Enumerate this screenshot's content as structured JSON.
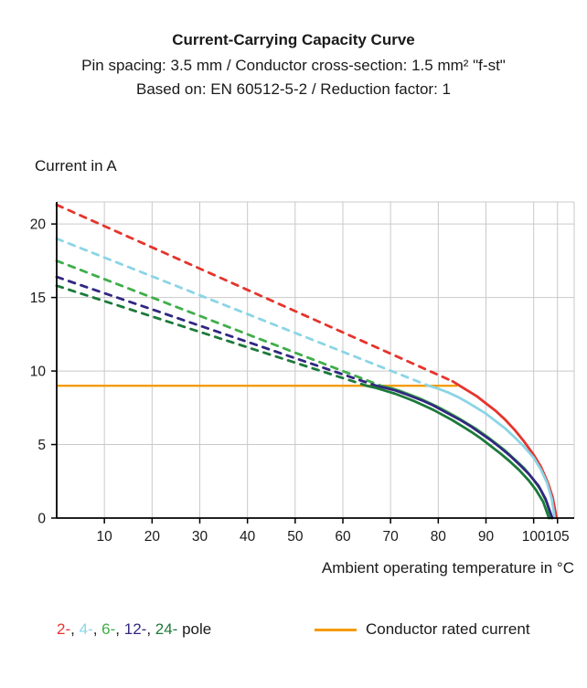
{
  "header": {
    "title": "Current-Carrying Capacity Curve",
    "subtitle1": "Pin spacing: 3.5 mm / Conductor cross-section: 1.5 mm² \"f-st\"",
    "subtitle2": "Based on: EN 60512-5-2 / Reduction factor: 1"
  },
  "chart_data": {
    "type": "line",
    "title": "Current-Carrying Capacity Curve",
    "xlabel": "Ambient operating temperature in °C",
    "ylabel": "Current in A",
    "xlim": [
      0,
      108.5
    ],
    "ylim": [
      0,
      21.5
    ],
    "x_ticks": [
      10,
      20,
      30,
      40,
      50,
      60,
      70,
      80,
      90,
      100,
      105
    ],
    "y_ticks": [
      0,
      5,
      10,
      15,
      20
    ],
    "grid": true,
    "grid_color": "#c9c9c9",
    "axis_color": "#000000",
    "rated_current": {
      "label": "Conductor rated current",
      "value": 9,
      "x_start": 0,
      "x_end": 84,
      "color": "#f59b00"
    },
    "series": [
      {
        "name": "2-pole",
        "color": "#e5342c",
        "dashed_points": [
          [
            0,
            21.3
          ],
          [
            83,
            9.3
          ]
        ],
        "solid_points": [
          [
            83,
            9.3
          ],
          [
            85,
            8.9
          ],
          [
            88,
            8.3
          ],
          [
            90,
            7.8
          ],
          [
            92,
            7.3
          ],
          [
            94,
            6.7
          ],
          [
            96,
            6.0
          ],
          [
            98,
            5.2
          ],
          [
            100,
            4.3
          ],
          [
            101.5,
            3.5
          ],
          [
            103,
            2.4
          ],
          [
            104,
            1.4
          ],
          [
            104.8,
            0
          ]
        ]
      },
      {
        "name": "4-pole",
        "color": "#8bd5e6",
        "dashed_points": [
          [
            0,
            19.0
          ],
          [
            78,
            9.0
          ]
        ],
        "solid_points": [
          [
            78,
            9.0
          ],
          [
            80,
            8.8
          ],
          [
            82,
            8.55
          ],
          [
            84,
            8.25
          ],
          [
            86,
            7.9
          ],
          [
            88,
            7.5
          ],
          [
            90,
            7.1
          ],
          [
            92,
            6.6
          ],
          [
            94,
            6.1
          ],
          [
            96,
            5.5
          ],
          [
            98,
            4.85
          ],
          [
            100,
            4.1
          ],
          [
            101.5,
            3.3
          ],
          [
            102.8,
            2.4
          ],
          [
            103.8,
            1.3
          ],
          [
            104.4,
            0
          ]
        ]
      },
      {
        "name": "6-pole",
        "color": "#3fae49",
        "dashed_points": [
          [
            0,
            17.5
          ],
          [
            68,
            9.0
          ]
        ],
        "solid_points": [
          [
            68,
            9.0
          ],
          [
            70,
            8.85
          ],
          [
            72,
            8.65
          ],
          [
            74,
            8.4
          ],
          [
            76,
            8.15
          ],
          [
            78,
            7.85
          ],
          [
            80,
            7.55
          ],
          [
            82,
            7.2
          ],
          [
            84,
            6.85
          ],
          [
            86,
            6.45
          ],
          [
            88,
            6.05
          ],
          [
            90,
            5.6
          ],
          [
            92,
            5.1
          ],
          [
            94,
            4.6
          ],
          [
            96,
            4.0
          ],
          [
            98,
            3.4
          ],
          [
            100,
            2.6
          ],
          [
            101.5,
            1.9
          ],
          [
            102.8,
            1.0
          ],
          [
            103.6,
            0
          ]
        ]
      },
      {
        "name": "12-pole",
        "color": "#312782",
        "dashed_points": [
          [
            0,
            16.4
          ],
          [
            67,
            9.0
          ]
        ],
        "solid_points": [
          [
            67,
            9.0
          ],
          [
            69,
            8.85
          ],
          [
            71,
            8.68
          ],
          [
            73,
            8.45
          ],
          [
            75,
            8.2
          ],
          [
            77,
            7.95
          ],
          [
            79,
            7.65
          ],
          [
            81,
            7.3
          ],
          [
            83,
            6.95
          ],
          [
            85,
            6.6
          ],
          [
            87,
            6.2
          ],
          [
            89,
            5.75
          ],
          [
            91,
            5.3
          ],
          [
            93,
            4.8
          ],
          [
            95,
            4.25
          ],
          [
            97,
            3.65
          ],
          [
            99,
            3.0
          ],
          [
            101,
            2.2
          ],
          [
            102.5,
            1.3
          ],
          [
            103.9,
            0
          ]
        ]
      },
      {
        "name": "24-pole",
        "color": "#1c7a3a",
        "dashed_points": [
          [
            0,
            15.8
          ],
          [
            65,
            9.0
          ]
        ],
        "solid_points": [
          [
            65,
            9.0
          ],
          [
            67,
            8.85
          ],
          [
            69,
            8.65
          ],
          [
            71,
            8.45
          ],
          [
            73,
            8.2
          ],
          [
            75,
            7.95
          ],
          [
            77,
            7.65
          ],
          [
            79,
            7.35
          ],
          [
            81,
            7.0
          ],
          [
            83,
            6.65
          ],
          [
            85,
            6.25
          ],
          [
            87,
            5.85
          ],
          [
            89,
            5.4
          ],
          [
            91,
            4.9
          ],
          [
            93,
            4.4
          ],
          [
            95,
            3.85
          ],
          [
            97,
            3.25
          ],
          [
            99,
            2.55
          ],
          [
            100.5,
            1.9
          ],
          [
            102,
            1.1
          ],
          [
            103.2,
            0
          ]
        ]
      }
    ]
  },
  "legend": {
    "poles": [
      {
        "label": "2-",
        "color": "#e5342c"
      },
      {
        "label": "4-",
        "color": "#8bd5e6"
      },
      {
        "label": "6-",
        "color": "#3fae49"
      },
      {
        "label": "12-",
        "color": "#312782"
      },
      {
        "label": "24-",
        "color": "#1c7a3a"
      }
    ],
    "separator": ", ",
    "suffix": " pole",
    "conductor_label": "Conductor rated current",
    "conductor_color": "#f59b00"
  }
}
